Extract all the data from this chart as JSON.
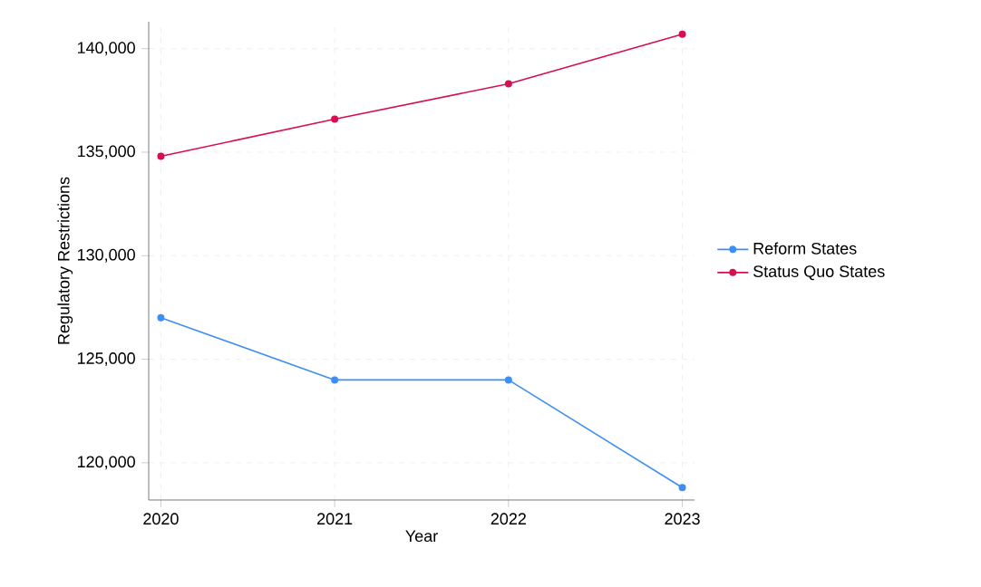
{
  "chart_data": {
    "type": "line",
    "xlabel": "Year",
    "ylabel": "Regulatory Restrictions",
    "x": [
      2020,
      2021,
      2022,
      2023
    ],
    "series": [
      {
        "name": "Reform States",
        "color": "#3d8ef5",
        "values": [
          127000,
          124000,
          124000,
          118800
        ]
      },
      {
        "name": "Status Quo States",
        "color": "#d6104f",
        "values": [
          134800,
          136600,
          138300,
          140700
        ]
      }
    ],
    "xlim": [
      2019.93,
      2023.07
    ],
    "ylim": [
      118200,
      141300
    ],
    "xticks": [
      2020,
      2021,
      2022,
      2023
    ],
    "yticks": [
      {
        "value": 120000,
        "label": "120,000"
      },
      {
        "value": 125000,
        "label": "125,000"
      },
      {
        "value": 130000,
        "label": "130,000"
      },
      {
        "value": 135000,
        "label": "135,000"
      },
      {
        "value": 140000,
        "label": "140,000"
      }
    ],
    "grid": true,
    "legend": "right",
    "marker": "circle",
    "line_style": "solid"
  }
}
